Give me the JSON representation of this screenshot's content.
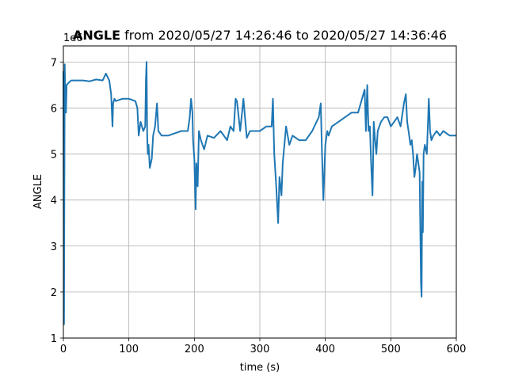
{
  "chart_data": {
    "type": "line",
    "title_bold": "ANGLE",
    "title_rest": " from 2020/05/27 14:26:46 to 2020/05/27 14:36:46",
    "xlabel": "time (s)",
    "ylabel": "ANGLE",
    "offset_text": "1e6",
    "xlim": [
      0,
      600
    ],
    "ylim": [
      1,
      7.35
    ],
    "xticks": [
      0,
      100,
      200,
      300,
      400,
      500,
      600
    ],
    "yticks": [
      1,
      2,
      3,
      4,
      5,
      6,
      7
    ],
    "grid": true,
    "line_color": "#1f77b4",
    "series": [
      {
        "x": [
          0,
          1,
          2,
          3,
          4,
          5,
          8,
          12,
          20,
          30,
          40,
          50,
          60,
          65,
          70,
          73,
          75,
          76,
          78,
          80,
          90,
          100,
          110,
          113,
          115,
          118,
          122,
          125,
          126,
          127,
          128,
          129,
          130,
          132,
          135,
          137,
          140,
          143,
          145,
          150,
          160,
          170,
          180,
          190,
          193,
          195,
          197,
          198,
          200,
          202,
          203,
          205,
          207,
          210,
          215,
          220,
          230,
          240,
          250,
          255,
          260,
          263,
          265,
          270,
          275,
          280,
          285,
          290,
          300,
          310,
          318,
          320,
          322,
          325,
          328,
          330,
          333,
          335,
          340,
          345,
          350,
          360,
          370,
          380,
          390,
          393,
          395,
          397,
          400,
          403,
          405,
          410,
          420,
          430,
          440,
          450,
          460,
          462,
          464,
          466,
          468,
          470,
          472,
          474,
          476,
          478,
          480,
          485,
          490,
          495,
          500,
          505,
          510,
          515,
          520,
          523,
          525,
          527,
          530,
          532,
          534,
          536,
          538,
          540,
          542,
          544,
          546,
          547,
          548,
          549,
          550,
          552,
          555,
          558,
          560,
          562,
          565,
          570,
          575,
          580,
          590,
          600
        ],
        "y": [
          6.8,
          1.3,
          6.95,
          6.1,
          5.9,
          6.5,
          6.55,
          6.6,
          6.6,
          6.6,
          6.58,
          6.62,
          6.6,
          6.75,
          6.6,
          6.3,
          5.6,
          6.1,
          6.2,
          6.15,
          6.2,
          6.2,
          6.15,
          6.0,
          5.4,
          5.7,
          5.5,
          5.6,
          6.6,
          7.0,
          5.4,
          5.0,
          5.2,
          4.7,
          4.9,
          5.4,
          5.6,
          6.1,
          5.5,
          5.4,
          5.4,
          5.45,
          5.5,
          5.5,
          5.8,
          6.2,
          5.9,
          5.3,
          4.9,
          3.8,
          4.8,
          4.3,
          5.5,
          5.3,
          5.1,
          5.4,
          5.35,
          5.5,
          5.3,
          5.6,
          5.5,
          6.2,
          6.15,
          5.5,
          6.2,
          5.35,
          5.5,
          5.5,
          5.5,
          5.6,
          5.6,
          6.2,
          5.0,
          4.3,
          3.5,
          4.5,
          4.1,
          4.8,
          5.6,
          5.2,
          5.4,
          5.3,
          5.3,
          5.5,
          5.8,
          6.1,
          5.0,
          4.0,
          5.2,
          5.5,
          5.4,
          5.6,
          5.7,
          5.8,
          5.9,
          5.9,
          6.4,
          5.5,
          6.5,
          5.5,
          5.6,
          4.8,
          4.1,
          5.7,
          5.3,
          5.0,
          5.5,
          5.7,
          5.8,
          5.8,
          5.6,
          5.7,
          5.8,
          5.6,
          6.1,
          6.3,
          5.7,
          5.5,
          5.2,
          5.3,
          5.0,
          4.5,
          4.7,
          5.0,
          4.8,
          4.6,
          2.2,
          1.9,
          4.4,
          3.3,
          5.0,
          5.2,
          5.0,
          6.2,
          5.5,
          5.3,
          5.4,
          5.5,
          5.4,
          5.5,
          5.4,
          5.4
        ]
      }
    ]
  }
}
